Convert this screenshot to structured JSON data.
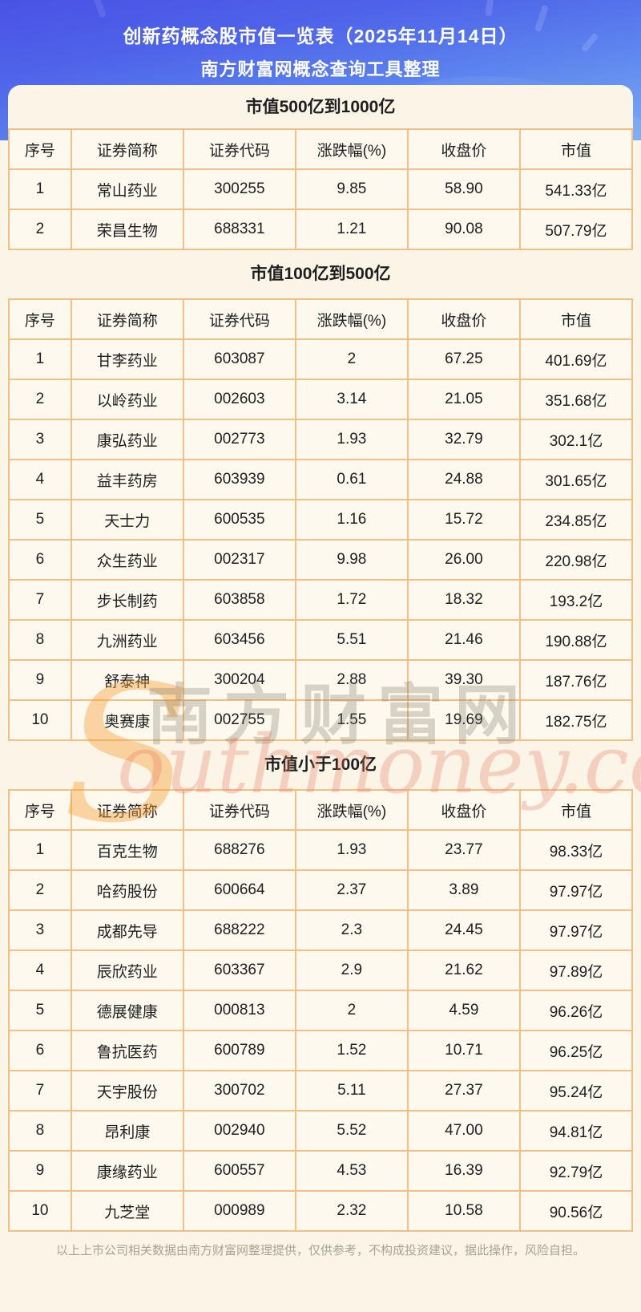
{
  "header": {
    "title": "创新药概念股市值一览表（2025年11月14日）",
    "subtitle": "南方财富网概念查询工具整理"
  },
  "chart_data": [
    {
      "type": "table",
      "title": "市值500亿到1000亿",
      "columns": [
        "序号",
        "证券简称",
        "证券代码",
        "涨跌幅(%)",
        "收盘价",
        "市值"
      ],
      "rows": [
        [
          "1",
          "常山药业",
          "300255",
          "9.85",
          "58.90",
          "541.33亿"
        ],
        [
          "2",
          "荣昌生物",
          "688331",
          "1.21",
          "90.08",
          "507.79亿"
        ]
      ]
    },
    {
      "type": "table",
      "title": "市值100亿到500亿",
      "columns": [
        "序号",
        "证券简称",
        "证券代码",
        "涨跌幅(%)",
        "收盘价",
        "市值"
      ],
      "rows": [
        [
          "1",
          "甘李药业",
          "603087",
          "2",
          "67.25",
          "401.69亿"
        ],
        [
          "2",
          "以岭药业",
          "002603",
          "3.14",
          "21.05",
          "351.68亿"
        ],
        [
          "3",
          "康弘药业",
          "002773",
          "1.93",
          "32.79",
          "302.1亿"
        ],
        [
          "4",
          "益丰药房",
          "603939",
          "0.61",
          "24.88",
          "301.65亿"
        ],
        [
          "5",
          "天士力",
          "600535",
          "1.16",
          "15.72",
          "234.85亿"
        ],
        [
          "6",
          "众生药业",
          "002317",
          "9.98",
          "26.00",
          "220.98亿"
        ],
        [
          "7",
          "步长制药",
          "603858",
          "1.72",
          "18.32",
          "193.2亿"
        ],
        [
          "8",
          "九洲药业",
          "603456",
          "5.51",
          "21.46",
          "190.88亿"
        ],
        [
          "9",
          "舒泰神",
          "300204",
          "2.88",
          "39.30",
          "187.76亿"
        ],
        [
          "10",
          "奥赛康",
          "002755",
          "1.55",
          "19.69",
          "182.75亿"
        ]
      ]
    },
    {
      "type": "table",
      "title": "市值小于100亿",
      "columns": [
        "序号",
        "证券简称",
        "证券代码",
        "涨跌幅(%)",
        "收盘价",
        "市值"
      ],
      "rows": [
        [
          "1",
          "百克生物",
          "688276",
          "1.93",
          "23.77",
          "98.33亿"
        ],
        [
          "2",
          "哈药股份",
          "600664",
          "2.37",
          "3.89",
          "97.97亿"
        ],
        [
          "3",
          "成都先导",
          "688222",
          "2.3",
          "24.45",
          "97.97亿"
        ],
        [
          "4",
          "辰欣药业",
          "603367",
          "2.9",
          "21.62",
          "97.89亿"
        ],
        [
          "5",
          "德展健康",
          "000813",
          "2",
          "4.59",
          "96.26亿"
        ],
        [
          "6",
          "鲁抗医药",
          "600789",
          "1.52",
          "10.71",
          "96.25亿"
        ],
        [
          "7",
          "天宇股份",
          "300702",
          "5.11",
          "27.37",
          "95.24亿"
        ],
        [
          "8",
          "昂利康",
          "002940",
          "5.52",
          "47.00",
          "94.81亿"
        ],
        [
          "9",
          "康缘药业",
          "600557",
          "4.53",
          "16.39",
          "92.79亿"
        ],
        [
          "10",
          "九芝堂",
          "000989",
          "2.32",
          "10.58",
          "90.56亿"
        ]
      ]
    }
  ],
  "watermark": {
    "logo_letter": "S",
    "site_name_cjk": "南方财富网",
    "site_name_latin": "outhmoney.com"
  },
  "footer": {
    "disclaimer": "以上上市公司相关数据由南方财富网整理提供，仅供参考，不构成投资建议，据此操作，风险自担。"
  },
  "colors": {
    "banner_gradient_top": "#4A52E5",
    "banner_gradient_bottom": "#7BABF3",
    "card_background": "#FBF5E8",
    "cell_background": "#FDF9EF",
    "table_border": "#F2C083",
    "title_text": "#FFFFFF",
    "body_text": "#1E1E1E",
    "footer_text": "#ABA192",
    "watermark_orange": "#F5A032",
    "watermark_gray": "#786E5F",
    "watermark_red": "#E4765C"
  }
}
